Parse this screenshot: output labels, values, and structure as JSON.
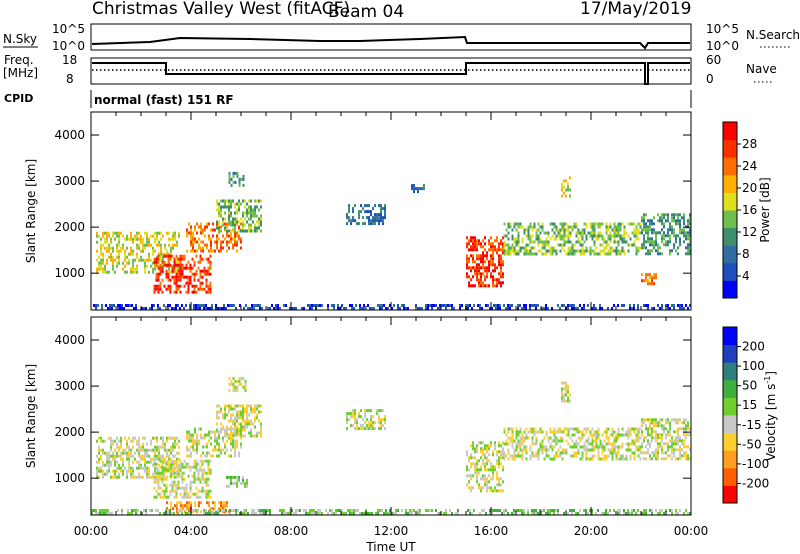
{
  "header": {
    "title": "Christmas Valley West (fitACF)",
    "beam": "Beam 04",
    "date": "17/May/2019"
  },
  "top_panels": {
    "nsky_label": "N.Sky",
    "nsky_ticks": [
      "10^5",
      "10^0"
    ],
    "nsearch_label": "N.Search",
    "nsearch_ticks": [
      "10^5",
      "10^0"
    ],
    "freq_label_1": "Freq.",
    "freq_label_2": "[MHz]",
    "freq_ticks": [
      "18",
      "8"
    ],
    "nave_label": "Nave",
    "nave_ticks": [
      "60",
      "0"
    ],
    "cpid_label": "CPID",
    "cpid_text": "normal (fast) 151 RF"
  },
  "colors": {
    "power_scale": [
      "#0000ff",
      "#1f4fbf",
      "#2f6f9f",
      "#3f8f6f",
      "#6fbf4f",
      "#dfdf1f",
      "#ffaf00",
      "#ff6f00",
      "#ff2f00",
      "#ff0000"
    ],
    "velocity_scale": [
      "#ff0000",
      "#ff5f00",
      "#ff9f1f",
      "#ffcf2f",
      "#c8c8c8",
      "#6fcf2f",
      "#3faf3f",
      "#2f7f7f",
      "#1f3fbf",
      "#0000ff"
    ]
  },
  "chart_data": [
    {
      "type": "heatmap",
      "panel": "power",
      "ylabel": "Slant Range [km]",
      "yticks": [
        "1000",
        "2000",
        "3000",
        "4000"
      ],
      "ylim": [
        200,
        4500
      ],
      "xlim": [
        0,
        24
      ],
      "colorbar_label": "Power [dB]",
      "colorbar_ticks": [
        "4",
        "8",
        "12",
        "16",
        "20",
        "24",
        "28"
      ],
      "patches": [
        {
          "t0": 0.2,
          "t1": 3.5,
          "r0": 1000,
          "r1": 1900,
          "level": 5
        },
        {
          "t0": 2.5,
          "t1": 4.8,
          "r0": 600,
          "r1": 1400,
          "level": 8
        },
        {
          "t0": 3.8,
          "t1": 6.0,
          "r0": 1500,
          "r1": 2100,
          "level": 7
        },
        {
          "t0": 5.0,
          "t1": 6.8,
          "r0": 1900,
          "r1": 2600,
          "level": 4
        },
        {
          "t0": 5.5,
          "t1": 6.2,
          "r0": 2900,
          "r1": 3200,
          "level": 3
        },
        {
          "t0": 10.2,
          "t1": 11.8,
          "r0": 2100,
          "r1": 2500,
          "level": 2
        },
        {
          "t0": 12.8,
          "t1": 13.3,
          "r0": 2800,
          "r1": 3000,
          "level": 2
        },
        {
          "t0": 15.0,
          "t1": 16.5,
          "r0": 700,
          "r1": 1800,
          "level": 8
        },
        {
          "t0": 16.5,
          "t1": 22.0,
          "r0": 1400,
          "r1": 2100,
          "level": 4
        },
        {
          "t0": 22.0,
          "t1": 24.0,
          "r0": 1400,
          "r1": 2300,
          "level": 3
        },
        {
          "t0": 22.0,
          "t1": 22.6,
          "r0": 800,
          "r1": 1000,
          "level": 7
        },
        {
          "t0": 18.8,
          "t1": 19.2,
          "r0": 2700,
          "r1": 3100,
          "level": 5
        },
        {
          "t0": 0.0,
          "t1": 24.0,
          "r0": 200,
          "r1": 330,
          "level": 1
        }
      ]
    },
    {
      "type": "heatmap",
      "panel": "velocity",
      "ylabel": "Slant Range [km]",
      "yticks": [
        "1000",
        "2000",
        "3000",
        "4000"
      ],
      "ylim": [
        200,
        4500
      ],
      "xlim": [
        0,
        24
      ],
      "xlabel": "Time UT",
      "xticks": [
        "00:00",
        "04:00",
        "08:00",
        "12:00",
        "16:00",
        "20:00",
        "00:00"
      ],
      "colorbar_label": "Velocity [m s",
      "colorbar_label_sup": "-1",
      "colorbar_label_end": "]",
      "colorbar_ticks": [
        "200",
        "100",
        "50",
        "15",
        "-15",
        "-50",
        "-100",
        "-200"
      ],
      "patches": [
        {
          "t0": 0.2,
          "t1": 3.5,
          "r0": 1000,
          "r1": 1900,
          "level": 4
        },
        {
          "t0": 2.5,
          "t1": 4.8,
          "r0": 600,
          "r1": 1400,
          "level": 4
        },
        {
          "t0": 3.8,
          "t1": 6.0,
          "r0": 1500,
          "r1": 2100,
          "level": 4
        },
        {
          "t0": 5.0,
          "t1": 6.8,
          "r0": 1900,
          "r1": 2600,
          "level": 4
        },
        {
          "t0": 5.5,
          "t1": 6.2,
          "r0": 2900,
          "r1": 3200,
          "level": 4
        },
        {
          "t0": 5.4,
          "t1": 6.2,
          "r0": 800,
          "r1": 1050,
          "level": 5
        },
        {
          "t0": 3.0,
          "t1": 5.5,
          "r0": 300,
          "r1": 500,
          "level": 2
        },
        {
          "t0": 10.2,
          "t1": 11.8,
          "r0": 2100,
          "r1": 2500,
          "level": 4
        },
        {
          "t0": 15.0,
          "t1": 16.5,
          "r0": 700,
          "r1": 1800,
          "level": 4
        },
        {
          "t0": 16.5,
          "t1": 22.0,
          "r0": 1400,
          "r1": 2100,
          "level": 4
        },
        {
          "t0": 22.0,
          "t1": 24.0,
          "r0": 1400,
          "r1": 2300,
          "level": 4
        },
        {
          "t0": 18.8,
          "t1": 19.2,
          "r0": 2700,
          "r1": 3100,
          "level": 4
        },
        {
          "t0": 0.0,
          "t1": 24.0,
          "r0": 200,
          "r1": 330,
          "level": 5
        }
      ]
    }
  ]
}
